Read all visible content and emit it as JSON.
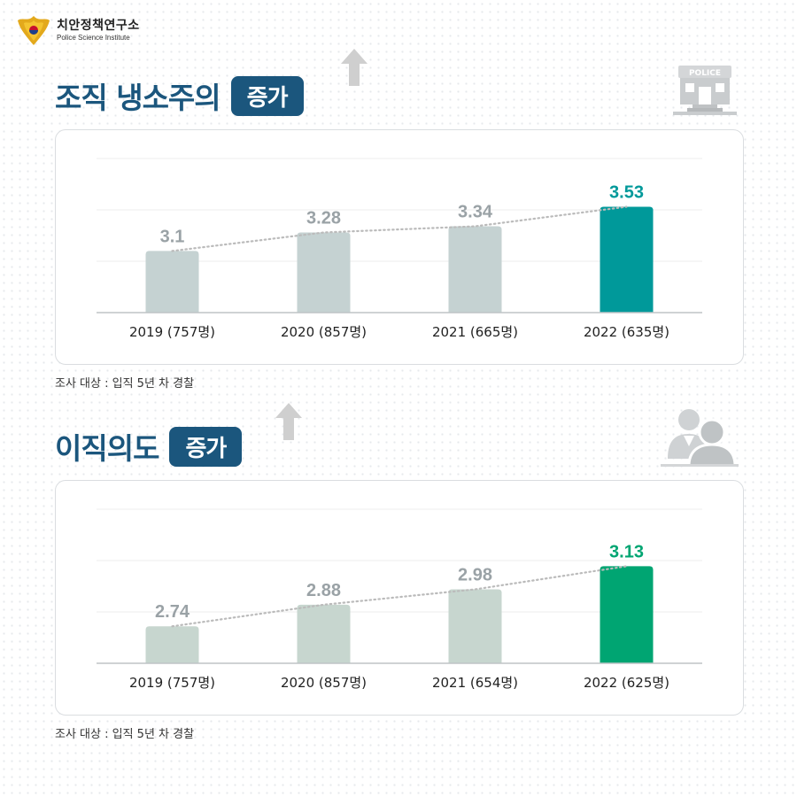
{
  "logo": {
    "name_ko": "치안정책연구소",
    "name_en": "Police Science Institute"
  },
  "icons": {
    "emblem": "police-emblem-icon",
    "police_station": "police-station-icon",
    "people": "people-icon",
    "arrow": "up-arrow-icon"
  },
  "police_sign": "POLICE",
  "colors": {
    "title": "#1b567d",
    "bar1_base": "#c5d2d2",
    "bar1_highlight": "#00999a",
    "bar2_base": "#c7d6cf",
    "bar2_highlight": "#00a572",
    "value_label": "#9aa2a6",
    "trend_line": "#bbbbbb"
  },
  "sections": [
    {
      "title": "조직 냉소주의",
      "badge": "증가",
      "note": "조사 대상 : 입직 5년 차 경찰"
    },
    {
      "title": "이직의도",
      "badge": "증가",
      "note": "조사 대상 : 입직 5년 차 경찰"
    }
  ],
  "chart_data": [
    {
      "type": "bar",
      "categories": [
        "2019 (757명)",
        "2020 (857명)",
        "2021 (665명)",
        "2022 (635명)"
      ],
      "values": [
        3.1,
        3.28,
        3.34,
        3.53
      ],
      "value_labels": [
        "3.1",
        "3.28",
        "3.34",
        "3.53"
      ],
      "highlight_index": 3,
      "ylim": [
        2.5,
        4.0
      ],
      "grid": true,
      "trend_line": "dotted"
    },
    {
      "type": "bar",
      "categories": [
        "2019 (757명)",
        "2020 (857명)",
        "2021 (654명)",
        "2022 (625명)"
      ],
      "values": [
        2.74,
        2.88,
        2.98,
        3.13
      ],
      "value_labels": [
        "2.74",
        "2.88",
        "2.98",
        "3.13"
      ],
      "highlight_index": 3,
      "ylim": [
        2.5,
        3.5
      ],
      "grid": true,
      "trend_line": "dotted"
    }
  ]
}
